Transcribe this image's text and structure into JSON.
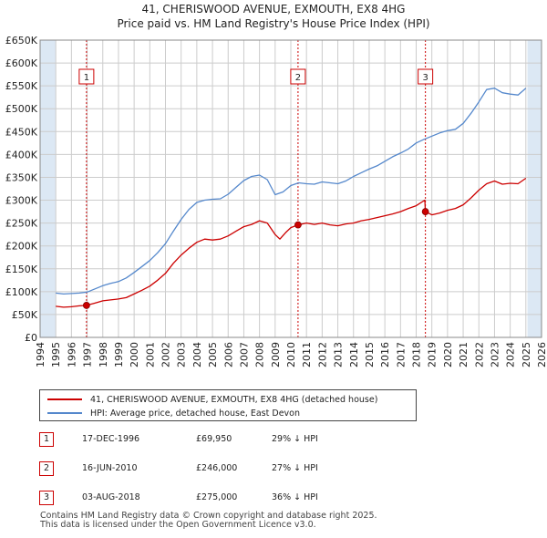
{
  "title": {
    "line1": "41, CHERISWOOD AVENUE, EXMOUTH, EX8 4HG",
    "line2": "Price paid vs. HM Land Registry's House Price Index (HPI)"
  },
  "colors": {
    "property": "#cc0000",
    "hpi": "#5588cc",
    "shade": "#dce8f4",
    "grid": "#cccccc",
    "marker_line": "#cc0000"
  },
  "chart_data": {
    "type": "line",
    "title": "Price paid vs. HM Land Registry's House Price Index (HPI)",
    "xlabel": "",
    "ylabel": "",
    "xlim": [
      1994,
      2026
    ],
    "ylim": [
      0,
      650000
    ],
    "y_ticks": [
      0,
      50000,
      100000,
      150000,
      200000,
      250000,
      300000,
      350000,
      400000,
      450000,
      500000,
      550000,
      600000,
      650000
    ],
    "y_tick_labels": [
      "£0",
      "£50K",
      "£100K",
      "£150K",
      "£200K",
      "£250K",
      "£300K",
      "£350K",
      "£400K",
      "£450K",
      "£500K",
      "£550K",
      "£600K",
      "£650K"
    ],
    "x_ticks": [
      1994,
      1995,
      1996,
      1997,
      1998,
      1999,
      2000,
      2001,
      2002,
      2003,
      2004,
      2005,
      2006,
      2007,
      2008,
      2009,
      2010,
      2011,
      2012,
      2013,
      2014,
      2015,
      2016,
      2017,
      2018,
      2019,
      2020,
      2021,
      2022,
      2023,
      2024,
      2025,
      2026
    ],
    "x_tick_labels": [
      "1994",
      "1995",
      "1996",
      "1997",
      "1998",
      "1999",
      "2000",
      "2001",
      "2002",
      "2003",
      "2004",
      "2005",
      "2006",
      "2007",
      "2008",
      "2009",
      "2010",
      "2011",
      "2012",
      "2013",
      "2014",
      "2015",
      "2016",
      "2017",
      "2018",
      "2019",
      "2020",
      "2021",
      "2022",
      "2023",
      "2024",
      "2025",
      "2026"
    ],
    "shaded_ranges": [
      [
        1994,
        1995.0
      ],
      [
        2025.1,
        2026
      ]
    ],
    "grid": true,
    "series": [
      {
        "name": "41, CHERISWOOD AVENUE, EXMOUTH, EX8 4HG (detached house)",
        "x": [
          1995.0,
          1995.5,
          1996.0,
          1996.5,
          1996.96,
          1997.5,
          1998.0,
          1998.5,
          1999.0,
          1999.5,
          2000.0,
          2000.5,
          2001.0,
          2001.5,
          2002.0,
          2002.5,
          2003.0,
          2003.5,
          2004.0,
          2004.5,
          2005.0,
          2005.5,
          2006.0,
          2006.5,
          2007.0,
          2007.5,
          2008.0,
          2008.5,
          2009.0,
          2009.3,
          2009.7,
          2010.0,
          2010.46,
          2011.0,
          2011.5,
          2012.0,
          2012.5,
          2013.0,
          2013.5,
          2014.0,
          2014.5,
          2015.0,
          2015.5,
          2016.0,
          2016.5,
          2017.0,
          2017.5,
          2018.0,
          2018.55,
          2018.59,
          2019.0,
          2019.5,
          2020.0,
          2020.5,
          2021.0,
          2021.5,
          2022.0,
          2022.5,
          2023.0,
          2023.5,
          2024.0,
          2024.5,
          2025.0
        ],
        "y": [
          68000,
          66000,
          67000,
          69000,
          69950,
          75000,
          80000,
          82000,
          84000,
          87000,
          95000,
          103000,
          112000,
          125000,
          140000,
          162000,
          180000,
          195000,
          208000,
          215000,
          213000,
          215000,
          222000,
          232000,
          242000,
          247000,
          255000,
          250000,
          225000,
          215000,
          230000,
          240000,
          246000,
          250000,
          247000,
          250000,
          246000,
          244000,
          248000,
          250000,
          255000,
          258000,
          262000,
          266000,
          270000,
          275000,
          282000,
          288000,
          300000,
          275000,
          268000,
          272000,
          278000,
          282000,
          290000,
          305000,
          322000,
          336000,
          342000,
          335000,
          337000,
          336000,
          348000
        ]
      },
      {
        "name": "HPI: Average price, detached house, East Devon",
        "x": [
          1995.0,
          1995.5,
          1996.0,
          1996.5,
          1997.0,
          1997.5,
          1998.0,
          1998.5,
          1999.0,
          1999.5,
          2000.0,
          2000.5,
          2001.0,
          2001.5,
          2002.0,
          2002.5,
          2003.0,
          2003.5,
          2004.0,
          2004.5,
          2005.0,
          2005.5,
          2006.0,
          2006.5,
          2007.0,
          2007.5,
          2008.0,
          2008.5,
          2009.0,
          2009.5,
          2010.0,
          2010.5,
          2011.0,
          2011.5,
          2012.0,
          2012.5,
          2013.0,
          2013.5,
          2014.0,
          2014.5,
          2015.0,
          2015.5,
          2016.0,
          2016.5,
          2017.0,
          2017.5,
          2018.0,
          2018.5,
          2019.0,
          2019.5,
          2020.0,
          2020.5,
          2021.0,
          2021.5,
          2022.0,
          2022.5,
          2023.0,
          2023.5,
          2024.0,
          2024.5,
          2025.0
        ],
        "y": [
          97000,
          95000,
          96000,
          97000,
          99000,
          106000,
          113000,
          118000,
          122000,
          130000,
          142000,
          155000,
          168000,
          185000,
          205000,
          232000,
          258000,
          280000,
          295000,
          300000,
          302000,
          303000,
          313000,
          328000,
          343000,
          352000,
          355000,
          345000,
          312000,
          318000,
          332000,
          338000,
          336000,
          335000,
          340000,
          338000,
          336000,
          342000,
          352000,
          360000,
          368000,
          375000,
          385000,
          395000,
          403000,
          412000,
          425000,
          433000,
          440000,
          447000,
          452000,
          455000,
          468000,
          490000,
          515000,
          542000,
          545000,
          535000,
          532000,
          530000,
          545000
        ]
      }
    ],
    "sale_points": [
      {
        "label": "1",
        "x": 1996.96,
        "y": 69950
      },
      {
        "label": "2",
        "x": 2010.46,
        "y": 246000
      },
      {
        "label": "3",
        "x": 2018.59,
        "y": 275000
      }
    ]
  },
  "legend": {
    "property_label": "41, CHERISWOOD AVENUE, EXMOUTH, EX8 4HG (detached house)",
    "hpi_label": "HPI: Average price, detached house, East Devon"
  },
  "sales": [
    {
      "num": "1",
      "date": "17-DEC-1996",
      "price": "£69,950",
      "hpi": "29% ↓ HPI"
    },
    {
      "num": "2",
      "date": "16-JUN-2010",
      "price": "£246,000",
      "hpi": "27% ↓ HPI"
    },
    {
      "num": "3",
      "date": "03-AUG-2018",
      "price": "£275,000",
      "hpi": "36% ↓ HPI"
    }
  ],
  "footer": {
    "line1": "Contains HM Land Registry data © Crown copyright and database right 2025.",
    "line2": "This data is licensed under the Open Government Licence v3.0."
  }
}
